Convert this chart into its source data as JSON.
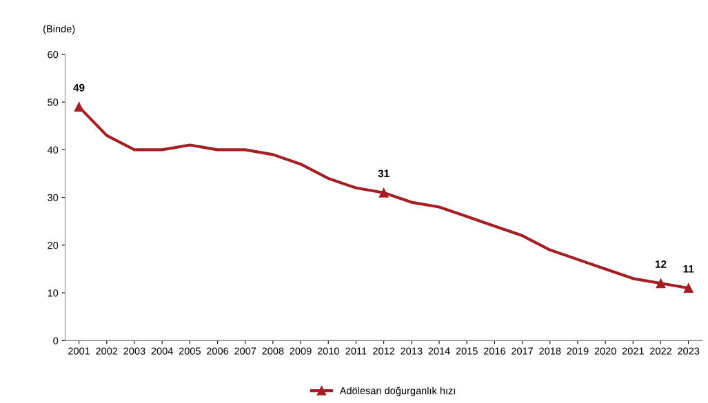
{
  "chart_data": {
    "type": "line",
    "ylabel": "(Binde)",
    "categories": [
      "2001",
      "2002",
      "2003",
      "2004",
      "2005",
      "2006",
      "2007",
      "2008",
      "2009",
      "2010",
      "2011",
      "2012",
      "2013",
      "2014",
      "2015",
      "2016",
      "2017",
      "2018",
      "2019",
      "2020",
      "2021",
      "2022",
      "2023"
    ],
    "series": [
      {
        "name": "Adölesan doğurganlık hızı",
        "color": "#a31f24",
        "marker": "none",
        "values": [
          49,
          43,
          40,
          40,
          41,
          40,
          40,
          39,
          37,
          34,
          32,
          31,
          29,
          28,
          26,
          24,
          22,
          19,
          17,
          15,
          13,
          12,
          11
        ]
      },
      {
        "type": "scatter",
        "color": "#a31f24",
        "marker": "triangle",
        "values": [
          49,
          null,
          null,
          null,
          null,
          null,
          null,
          null,
          null,
          null,
          null,
          31,
          null,
          null,
          null,
          null,
          null,
          null,
          null,
          null,
          null,
          12,
          11
        ],
        "value_labels": [
          "49",
          null,
          null,
          null,
          null,
          null,
          null,
          null,
          null,
          null,
          null,
          "31",
          null,
          null,
          null,
          null,
          null,
          null,
          null,
          null,
          null,
          "12",
          "11"
        ]
      }
    ],
    "ylim": [
      0,
      60
    ],
    "yticks": [
      0,
      10,
      20,
      30,
      40,
      50,
      60
    ],
    "grid": false,
    "legend": "bottom",
    "line_style": "solid"
  }
}
